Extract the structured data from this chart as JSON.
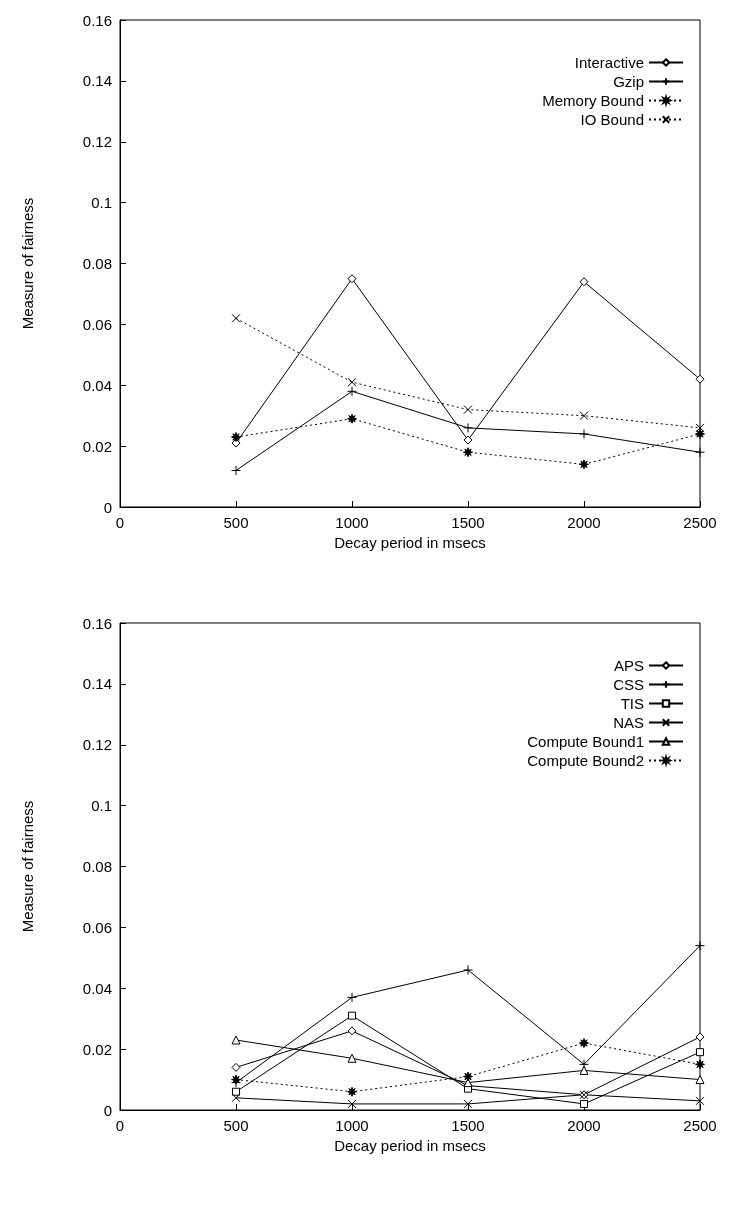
{
  "chart_data": [
    {
      "type": "line",
      "xlabel": "Decay period in msecs",
      "ylabel": "Measure of fairness",
      "x": [
        500,
        1000,
        1500,
        2000,
        2500
      ],
      "xlim": [
        0,
        2500
      ],
      "xticks": [
        0,
        500,
        1000,
        1500,
        2000,
        2500
      ],
      "ylim": [
        0,
        0.16
      ],
      "yticks": [
        0,
        0.02,
        0.04,
        0.06,
        0.08,
        0.1,
        0.12,
        0.14,
        0.16
      ],
      "legend": "top right",
      "grid": false,
      "series": [
        {
          "name": "Interactive",
          "color": "#000000",
          "marker": "diamond",
          "line_style": "solid",
          "values": [
            0.021,
            0.075,
            0.022,
            0.074,
            0.042
          ]
        },
        {
          "name": "Gzip",
          "color": "#000000",
          "marker": "plus",
          "line_style": "solid",
          "values": [
            0.012,
            0.038,
            0.026,
            0.024,
            0.018
          ]
        },
        {
          "name": "Memory Bound",
          "color": "#000000",
          "marker": "star",
          "line_style": "dotted",
          "values": [
            0.023,
            0.029,
            0.018,
            0.014,
            0.024
          ]
        },
        {
          "name": "IO Bound",
          "color": "#000000",
          "marker": "cross",
          "line_style": "dotted",
          "values": [
            0.062,
            0.041,
            0.032,
            0.03,
            0.026
          ]
        }
      ]
    },
    {
      "type": "line",
      "xlabel": "Decay period in msecs",
      "ylabel": "Measure of fairness",
      "x": [
        500,
        1000,
        1500,
        2000,
        2500
      ],
      "xlim": [
        0,
        2500
      ],
      "xticks": [
        0,
        500,
        1000,
        1500,
        2000,
        2500
      ],
      "ylim": [
        0,
        0.16
      ],
      "yticks": [
        0,
        0.02,
        0.04,
        0.06,
        0.08,
        0.1,
        0.12,
        0.14,
        0.16
      ],
      "legend": "top right",
      "grid": false,
      "series": [
        {
          "name": "APS",
          "color": "#000000",
          "marker": "diamond",
          "line_style": "solid",
          "values": [
            0.014,
            0.026,
            0.008,
            0.005,
            0.024
          ]
        },
        {
          "name": "CSS",
          "color": "#000000",
          "marker": "plus",
          "line_style": "solid",
          "values": [
            0.009,
            0.037,
            0.046,
            0.015,
            0.054
          ]
        },
        {
          "name": "TIS",
          "color": "#000000",
          "marker": "square",
          "line_style": "solid",
          "values": [
            0.006,
            0.031,
            0.007,
            0.002,
            0.019
          ]
        },
        {
          "name": "NAS",
          "color": "#000000",
          "marker": "cross",
          "line_style": "solid",
          "values": [
            0.004,
            0.002,
            0.002,
            0.005,
            0.003
          ]
        },
        {
          "name": "Compute Bound1",
          "color": "#000000",
          "marker": "triangle",
          "line_style": "solid",
          "values": [
            0.023,
            0.017,
            0.009,
            0.013,
            0.01
          ]
        },
        {
          "name": "Compute Bound2",
          "color": "#000000",
          "marker": "star",
          "line_style": "dotted",
          "values": [
            0.01,
            0.006,
            0.011,
            0.022,
            0.015
          ]
        }
      ]
    }
  ]
}
